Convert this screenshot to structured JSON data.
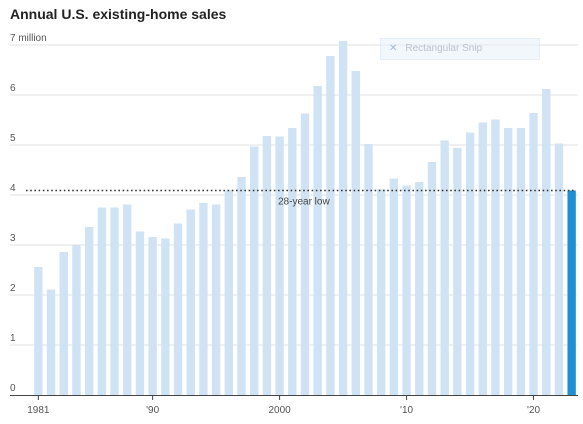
{
  "chart_data": {
    "type": "bar",
    "title": "Annual U.S. existing-home sales",
    "y_unit_label": "7 million",
    "ylim": [
      0,
      7.2
    ],
    "yticks": [
      0,
      1,
      2,
      3,
      4,
      5,
      6,
      7
    ],
    "ytick_labels": [
      "0",
      "1",
      "2",
      "3",
      "4",
      "5",
      "6",
      "7 million"
    ],
    "x": [
      1981,
      1982,
      1983,
      1984,
      1985,
      1986,
      1987,
      1988,
      1989,
      1990,
      1991,
      1992,
      1993,
      1994,
      1995,
      1996,
      1997,
      1998,
      1999,
      2000,
      2001,
      2002,
      2003,
      2004,
      2005,
      2006,
      2007,
      2008,
      2009,
      2010,
      2011,
      2012,
      2013,
      2014,
      2015,
      2016,
      2017,
      2018,
      2019,
      2020,
      2021,
      2022,
      2023
    ],
    "values": [
      2.56,
      2.11,
      2.86,
      3.0,
      3.36,
      3.75,
      3.75,
      3.81,
      3.27,
      3.16,
      3.13,
      3.43,
      3.71,
      3.84,
      3.81,
      4.09,
      4.36,
      4.97,
      5.18,
      5.17,
      5.34,
      5.63,
      6.18,
      6.78,
      7.08,
      6.48,
      5.02,
      4.11,
      4.33,
      4.19,
      4.26,
      4.66,
      5.09,
      4.94,
      5.25,
      5.45,
      5.51,
      5.34,
      5.34,
      5.64,
      6.12,
      5.03,
      4.09
    ],
    "xtick_labels": [
      {
        "year": 1981,
        "label": "1981"
      },
      {
        "year": 1990,
        "label": "'90"
      },
      {
        "year": 2000,
        "label": "2000"
      },
      {
        "year": 2010,
        "label": "'10"
      },
      {
        "year": 2020,
        "label": "'20"
      }
    ],
    "highlight_year": 2023,
    "reference_line": {
      "value": 4.09,
      "label": "28-year low"
    },
    "grid": true,
    "colors": {
      "bar": "#cfe3f5",
      "highlight": "#1f90d2",
      "grid": "#e2e2e2",
      "text": "#555555"
    }
  },
  "overlay": {
    "snip_label": "Rectangular Snip",
    "snip_icon": "close-icon"
  }
}
